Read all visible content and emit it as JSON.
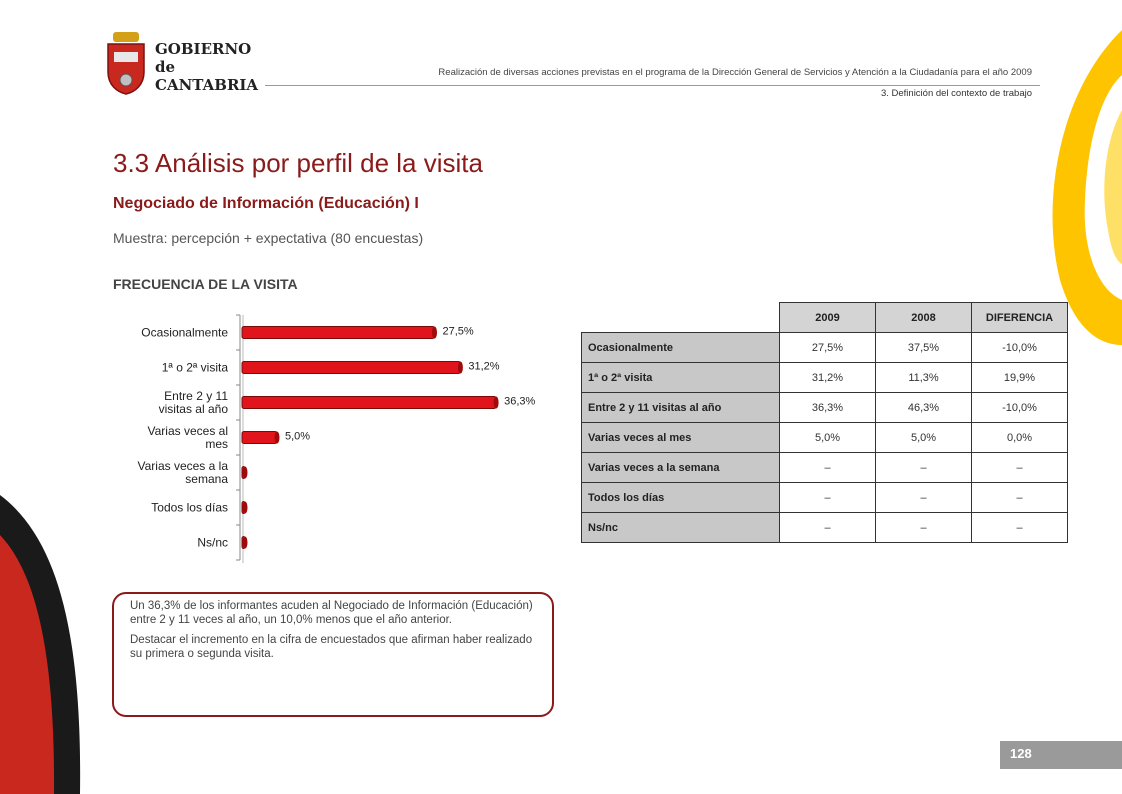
{
  "header": {
    "logo_line1": "GOBIERNO",
    "logo_line2": "de",
    "logo_line3": "CANTABRIA",
    "program_text": "Realización de diversas acciones previstas en el programa de la Dirección General de Servicios y Atención a la Ciudadanía para el año 2009",
    "section_text": "3. Definición del contexto de trabajo"
  },
  "page": {
    "title": "3.3 Análisis por perfil de la visita",
    "subtitle": "Negociado de Información (Educación) I",
    "sample": "Muestra: percepción + expectativa (80 encuestas)",
    "section_heading": "FRECUENCIA DE LA VISITA",
    "page_number": "128"
  },
  "colors": {
    "accent": "#8b1a1a",
    "bar": "#e0141a",
    "deco_red": "#c8281e",
    "deco_yellow": "#ffc400"
  },
  "chart_data": {
    "type": "bar",
    "orientation": "horizontal",
    "categories": [
      "Ocasionalmente",
      "1ª o 2ª visita",
      "Entre 2 y 11 visitas al año",
      "Varias veces al mes",
      "Varias veces a la semana",
      "Todos los días",
      "Ns/nc"
    ],
    "category_lines": [
      [
        "Ocasionalmente"
      ],
      [
        "1ª o 2ª visita"
      ],
      [
        "Entre 2 y 11",
        "visitas al año"
      ],
      [
        "Varias veces al",
        "mes"
      ],
      [
        "Varias veces a la",
        "semana"
      ],
      [
        "Todos los días"
      ],
      [
        "Ns/nc"
      ]
    ],
    "values": [
      27.5,
      31.2,
      36.3,
      5.0,
      0,
      0,
      0
    ],
    "value_labels": [
      "27,5%",
      "31,2%",
      "36,3%",
      "5,0%",
      "",
      "",
      ""
    ],
    "xlim": [
      0,
      40
    ]
  },
  "table": {
    "headers": [
      "2009",
      "2008",
      "DIFERENCIA"
    ],
    "rows": [
      {
        "label": "Ocasionalmente",
        "cells": [
          "27,5%",
          "37,5%",
          "-10,0%"
        ]
      },
      {
        "label": "1ª o 2ª visita",
        "cells": [
          "31,2%",
          "11,3%",
          "19,9%"
        ]
      },
      {
        "label": "Entre 2 y 11 visitas al año",
        "cells": [
          "36,3%",
          "46,3%",
          "-10,0%"
        ]
      },
      {
        "label": "Varias veces al mes",
        "cells": [
          "5,0%",
          "5,0%",
          "0,0%"
        ]
      },
      {
        "label": "Varias veces a la semana",
        "cells": [
          "–",
          "–",
          "–"
        ]
      },
      {
        "label": "Todos los días",
        "cells": [
          "–",
          "–",
          "–"
        ]
      },
      {
        "label": "Ns/nc",
        "cells": [
          "–",
          "–",
          "–"
        ]
      }
    ]
  },
  "note": {
    "paragraph1": "Un 36,3% de los informantes acuden al Negociado de Información (Educación) entre 2 y 11 veces al año, un 10,0% menos que el año anterior.",
    "paragraph2": "Destacar el incremento en la cifra de encuestados que afirman haber realizado su primera o segunda visita."
  }
}
